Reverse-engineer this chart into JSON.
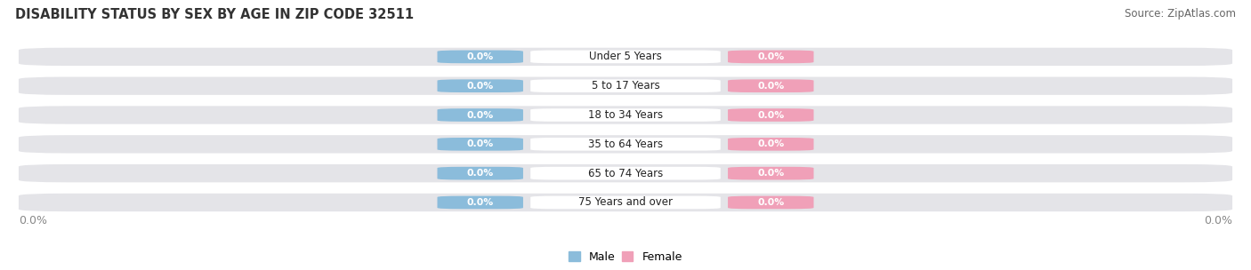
{
  "title": "DISABILITY STATUS BY SEX BY AGE IN ZIP CODE 32511",
  "source": "Source: ZipAtlas.com",
  "categories": [
    "Under 5 Years",
    "5 to 17 Years",
    "18 to 34 Years",
    "35 to 64 Years",
    "65 to 74 Years",
    "75 Years and over"
  ],
  "male_values": [
    0.0,
    0.0,
    0.0,
    0.0,
    0.0,
    0.0
  ],
  "female_values": [
    0.0,
    0.0,
    0.0,
    0.0,
    0.0,
    0.0
  ],
  "male_color": "#8bbcdb",
  "female_color": "#f0a0b8",
  "bar_bg_color": "#e4e4e8",
  "background_color": "#ffffff",
  "title_fontsize": 10.5,
  "source_fontsize": 8.5,
  "tick_fontsize": 9,
  "label_fontsize": 9,
  "legend_male": "Male",
  "legend_female": "Female"
}
